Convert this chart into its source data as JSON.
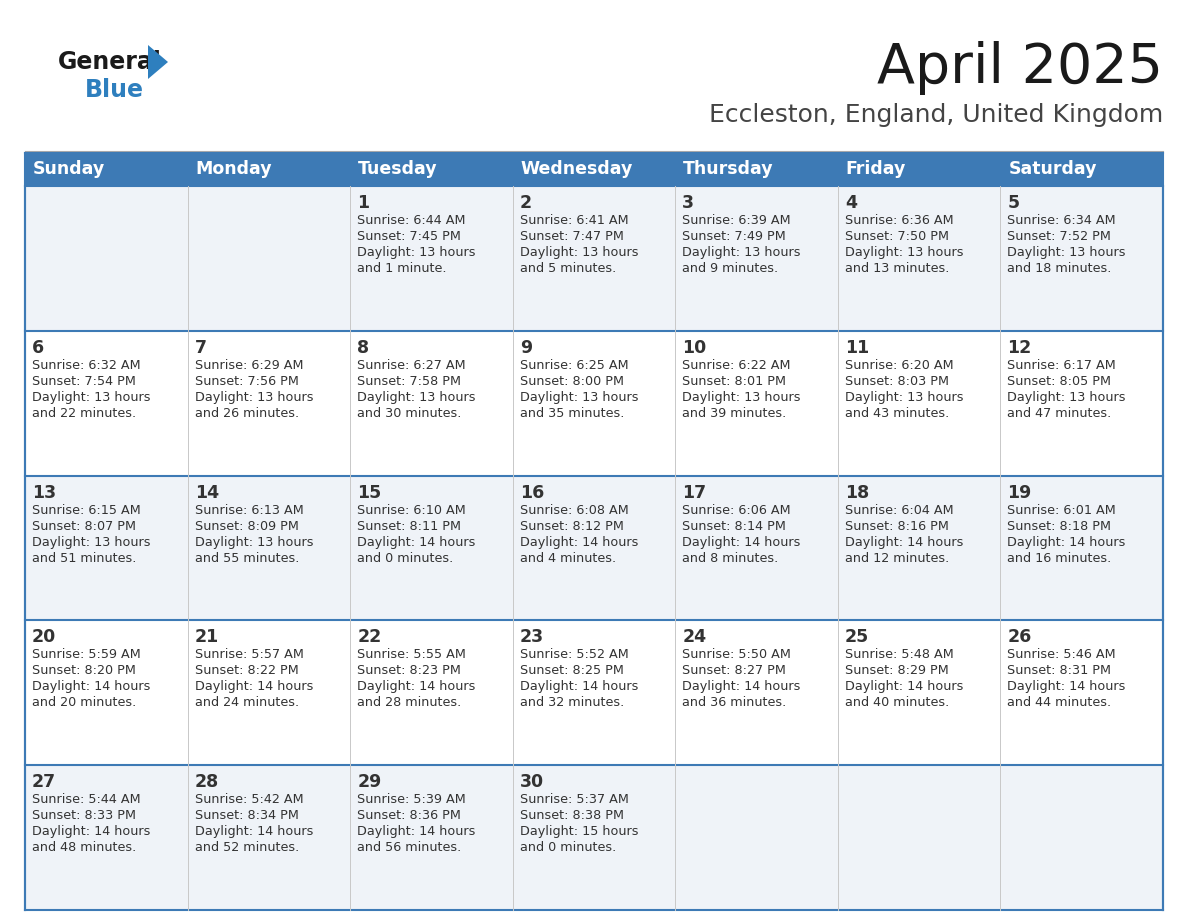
{
  "title": "April 2025",
  "subtitle": "Eccleston, England, United Kingdom",
  "header_color": "#3d7ab5",
  "header_text_color": "#ffffff",
  "days_of_week": [
    "Sunday",
    "Monday",
    "Tuesday",
    "Wednesday",
    "Thursday",
    "Friday",
    "Saturday"
  ],
  "row_bg_colors": [
    "#eff3f8",
    "#ffffff"
  ],
  "border_color": "#3d7ab5",
  "text_color": "#333333",
  "calendar_data": [
    [
      {
        "day": "",
        "sunrise": "",
        "sunset": "",
        "daylight": ""
      },
      {
        "day": "",
        "sunrise": "",
        "sunset": "",
        "daylight": ""
      },
      {
        "day": "1",
        "sunrise": "Sunrise: 6:44 AM",
        "sunset": "Sunset: 7:45 PM",
        "daylight": "Daylight: 13 hours\nand 1 minute."
      },
      {
        "day": "2",
        "sunrise": "Sunrise: 6:41 AM",
        "sunset": "Sunset: 7:47 PM",
        "daylight": "Daylight: 13 hours\nand 5 minutes."
      },
      {
        "day": "3",
        "sunrise": "Sunrise: 6:39 AM",
        "sunset": "Sunset: 7:49 PM",
        "daylight": "Daylight: 13 hours\nand 9 minutes."
      },
      {
        "day": "4",
        "sunrise": "Sunrise: 6:36 AM",
        "sunset": "Sunset: 7:50 PM",
        "daylight": "Daylight: 13 hours\nand 13 minutes."
      },
      {
        "day": "5",
        "sunrise": "Sunrise: 6:34 AM",
        "sunset": "Sunset: 7:52 PM",
        "daylight": "Daylight: 13 hours\nand 18 minutes."
      }
    ],
    [
      {
        "day": "6",
        "sunrise": "Sunrise: 6:32 AM",
        "sunset": "Sunset: 7:54 PM",
        "daylight": "Daylight: 13 hours\nand 22 minutes."
      },
      {
        "day": "7",
        "sunrise": "Sunrise: 6:29 AM",
        "sunset": "Sunset: 7:56 PM",
        "daylight": "Daylight: 13 hours\nand 26 minutes."
      },
      {
        "day": "8",
        "sunrise": "Sunrise: 6:27 AM",
        "sunset": "Sunset: 7:58 PM",
        "daylight": "Daylight: 13 hours\nand 30 minutes."
      },
      {
        "day": "9",
        "sunrise": "Sunrise: 6:25 AM",
        "sunset": "Sunset: 8:00 PM",
        "daylight": "Daylight: 13 hours\nand 35 minutes."
      },
      {
        "day": "10",
        "sunrise": "Sunrise: 6:22 AM",
        "sunset": "Sunset: 8:01 PM",
        "daylight": "Daylight: 13 hours\nand 39 minutes."
      },
      {
        "day": "11",
        "sunrise": "Sunrise: 6:20 AM",
        "sunset": "Sunset: 8:03 PM",
        "daylight": "Daylight: 13 hours\nand 43 minutes."
      },
      {
        "day": "12",
        "sunrise": "Sunrise: 6:17 AM",
        "sunset": "Sunset: 8:05 PM",
        "daylight": "Daylight: 13 hours\nand 47 minutes."
      }
    ],
    [
      {
        "day": "13",
        "sunrise": "Sunrise: 6:15 AM",
        "sunset": "Sunset: 8:07 PM",
        "daylight": "Daylight: 13 hours\nand 51 minutes."
      },
      {
        "day": "14",
        "sunrise": "Sunrise: 6:13 AM",
        "sunset": "Sunset: 8:09 PM",
        "daylight": "Daylight: 13 hours\nand 55 minutes."
      },
      {
        "day": "15",
        "sunrise": "Sunrise: 6:10 AM",
        "sunset": "Sunset: 8:11 PM",
        "daylight": "Daylight: 14 hours\nand 0 minutes."
      },
      {
        "day": "16",
        "sunrise": "Sunrise: 6:08 AM",
        "sunset": "Sunset: 8:12 PM",
        "daylight": "Daylight: 14 hours\nand 4 minutes."
      },
      {
        "day": "17",
        "sunrise": "Sunrise: 6:06 AM",
        "sunset": "Sunset: 8:14 PM",
        "daylight": "Daylight: 14 hours\nand 8 minutes."
      },
      {
        "day": "18",
        "sunrise": "Sunrise: 6:04 AM",
        "sunset": "Sunset: 8:16 PM",
        "daylight": "Daylight: 14 hours\nand 12 minutes."
      },
      {
        "day": "19",
        "sunrise": "Sunrise: 6:01 AM",
        "sunset": "Sunset: 8:18 PM",
        "daylight": "Daylight: 14 hours\nand 16 minutes."
      }
    ],
    [
      {
        "day": "20",
        "sunrise": "Sunrise: 5:59 AM",
        "sunset": "Sunset: 8:20 PM",
        "daylight": "Daylight: 14 hours\nand 20 minutes."
      },
      {
        "day": "21",
        "sunrise": "Sunrise: 5:57 AM",
        "sunset": "Sunset: 8:22 PM",
        "daylight": "Daylight: 14 hours\nand 24 minutes."
      },
      {
        "day": "22",
        "sunrise": "Sunrise: 5:55 AM",
        "sunset": "Sunset: 8:23 PM",
        "daylight": "Daylight: 14 hours\nand 28 minutes."
      },
      {
        "day": "23",
        "sunrise": "Sunrise: 5:52 AM",
        "sunset": "Sunset: 8:25 PM",
        "daylight": "Daylight: 14 hours\nand 32 minutes."
      },
      {
        "day": "24",
        "sunrise": "Sunrise: 5:50 AM",
        "sunset": "Sunset: 8:27 PM",
        "daylight": "Daylight: 14 hours\nand 36 minutes."
      },
      {
        "day": "25",
        "sunrise": "Sunrise: 5:48 AM",
        "sunset": "Sunset: 8:29 PM",
        "daylight": "Daylight: 14 hours\nand 40 minutes."
      },
      {
        "day": "26",
        "sunrise": "Sunrise: 5:46 AM",
        "sunset": "Sunset: 8:31 PM",
        "daylight": "Daylight: 14 hours\nand 44 minutes."
      }
    ],
    [
      {
        "day": "27",
        "sunrise": "Sunrise: 5:44 AM",
        "sunset": "Sunset: 8:33 PM",
        "daylight": "Daylight: 14 hours\nand 48 minutes."
      },
      {
        "day": "28",
        "sunrise": "Sunrise: 5:42 AM",
        "sunset": "Sunset: 8:34 PM",
        "daylight": "Daylight: 14 hours\nand 52 minutes."
      },
      {
        "day": "29",
        "sunrise": "Sunrise: 5:39 AM",
        "sunset": "Sunset: 8:36 PM",
        "daylight": "Daylight: 14 hours\nand 56 minutes."
      },
      {
        "day": "30",
        "sunrise": "Sunrise: 5:37 AM",
        "sunset": "Sunset: 8:38 PM",
        "daylight": "Daylight: 15 hours\nand 0 minutes."
      },
      {
        "day": "",
        "sunrise": "",
        "sunset": "",
        "daylight": ""
      },
      {
        "day": "",
        "sunrise": "",
        "sunset": "",
        "daylight": ""
      },
      {
        "day": "",
        "sunrise": "",
        "sunset": "",
        "daylight": ""
      }
    ]
  ],
  "logo_color_general": "#1a1a1a",
  "logo_color_blue": "#2e7fbe",
  "logo_triangle_color": "#2e7fbe"
}
